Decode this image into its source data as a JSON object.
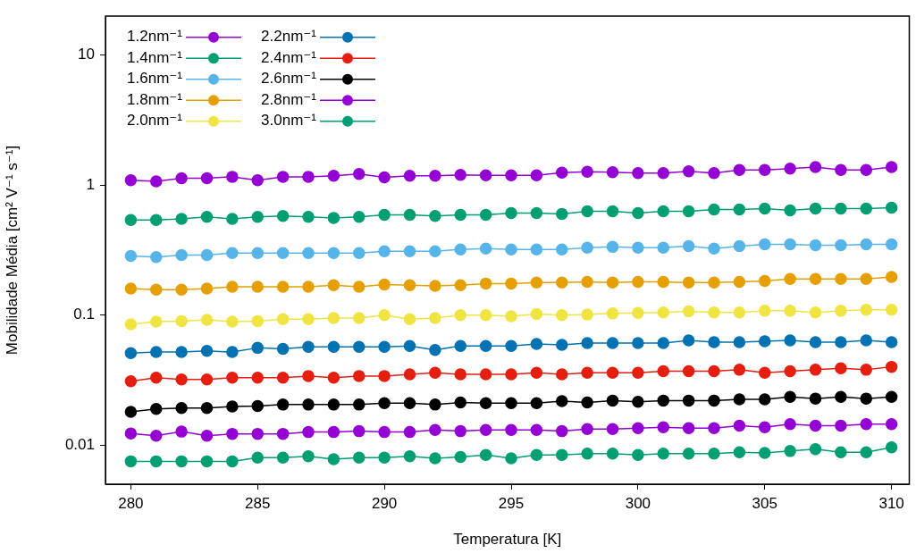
{
  "chart_data": {
    "type": "line",
    "xlabel": "Temperatura [K]",
    "ylabel": "Mobilidade Média [cm² V⁻¹ s⁻¹]",
    "x": [
      280,
      281,
      282,
      283,
      284,
      285,
      286,
      287,
      288,
      289,
      290,
      291,
      292,
      293,
      294,
      295,
      296,
      297,
      298,
      299,
      300,
      301,
      302,
      303,
      304,
      305,
      306,
      307,
      308,
      309,
      310
    ],
    "xlim": [
      279,
      310.7
    ],
    "xticks": [
      280,
      285,
      290,
      295,
      300,
      305,
      310
    ],
    "ylim": [
      0.005,
      20
    ],
    "yticks": [
      0.01,
      0.1,
      1,
      10
    ],
    "log": "y",
    "grid": false,
    "legend": "top left",
    "marker": "circle",
    "line_style": "solid",
    "series": [
      {
        "name": "1.2nm⁻¹",
        "color": "#9400d3",
        "values": [
          1.09,
          1.07,
          1.13,
          1.13,
          1.16,
          1.09,
          1.16,
          1.16,
          1.18,
          1.22,
          1.15,
          1.18,
          1.18,
          1.2,
          1.19,
          1.19,
          1.19,
          1.25,
          1.27,
          1.26,
          1.24,
          1.24,
          1.28,
          1.24,
          1.31,
          1.31,
          1.34,
          1.38,
          1.31,
          1.31,
          1.38
        ]
      },
      {
        "name": "1.4nm⁻¹",
        "color": "#009e73",
        "values": [
          0.54,
          0.54,
          0.55,
          0.57,
          0.55,
          0.57,
          0.58,
          0.57,
          0.56,
          0.57,
          0.59,
          0.59,
          0.58,
          0.59,
          0.59,
          0.61,
          0.61,
          0.6,
          0.63,
          0.63,
          0.61,
          0.63,
          0.63,
          0.65,
          0.65,
          0.66,
          0.64,
          0.66,
          0.66,
          0.66,
          0.67
        ]
      },
      {
        "name": "1.6nm⁻¹",
        "color": "#56b4e9",
        "values": [
          0.285,
          0.28,
          0.29,
          0.29,
          0.3,
          0.3,
          0.3,
          0.3,
          0.3,
          0.3,
          0.31,
          0.31,
          0.31,
          0.32,
          0.325,
          0.32,
          0.32,
          0.32,
          0.33,
          0.335,
          0.33,
          0.33,
          0.34,
          0.325,
          0.34,
          0.35,
          0.35,
          0.345,
          0.345,
          0.35,
          0.35
        ]
      },
      {
        "name": "1.8nm⁻¹",
        "color": "#e69f00",
        "values": [
          0.16,
          0.157,
          0.157,
          0.16,
          0.165,
          0.165,
          0.165,
          0.165,
          0.17,
          0.165,
          0.172,
          0.17,
          0.168,
          0.17,
          0.175,
          0.175,
          0.178,
          0.178,
          0.18,
          0.178,
          0.18,
          0.18,
          0.178,
          0.178,
          0.18,
          0.183,
          0.19,
          0.19,
          0.19,
          0.19,
          0.197
        ]
      },
      {
        "name": "2.0nm⁻¹",
        "color": "#f0e442",
        "values": [
          0.085,
          0.089,
          0.09,
          0.092,
          0.089,
          0.09,
          0.093,
          0.093,
          0.095,
          0.095,
          0.1,
          0.093,
          0.095,
          0.1,
          0.1,
          0.098,
          0.102,
          0.1,
          0.101,
          0.103,
          0.104,
          0.105,
          0.107,
          0.105,
          0.105,
          0.108,
          0.108,
          0.105,
          0.108,
          0.11,
          0.11
        ]
      },
      {
        "name": "2.2nm⁻¹",
        "color": "#0072b2",
        "values": [
          0.051,
          0.052,
          0.052,
          0.053,
          0.052,
          0.056,
          0.055,
          0.057,
          0.057,
          0.057,
          0.057,
          0.058,
          0.054,
          0.058,
          0.058,
          0.058,
          0.06,
          0.059,
          0.061,
          0.061,
          0.061,
          0.061,
          0.064,
          0.062,
          0.062,
          0.063,
          0.064,
          0.062,
          0.062,
          0.064,
          0.062
        ]
      },
      {
        "name": "2.4nm⁻¹",
        "color": "#e51e10",
        "values": [
          0.031,
          0.033,
          0.032,
          0.032,
          0.033,
          0.033,
          0.033,
          0.034,
          0.033,
          0.034,
          0.034,
          0.035,
          0.036,
          0.035,
          0.035,
          0.035,
          0.036,
          0.035,
          0.036,
          0.036,
          0.036,
          0.037,
          0.037,
          0.037,
          0.038,
          0.036,
          0.037,
          0.038,
          0.039,
          0.038,
          0.04
        ]
      },
      {
        "name": "2.6nm⁻¹",
        "color": "#000000",
        "values": [
          0.018,
          0.019,
          0.0193,
          0.0193,
          0.0198,
          0.02,
          0.0205,
          0.0205,
          0.0205,
          0.0205,
          0.021,
          0.021,
          0.0205,
          0.0213,
          0.021,
          0.021,
          0.021,
          0.0218,
          0.0213,
          0.022,
          0.0215,
          0.022,
          0.022,
          0.022,
          0.0225,
          0.0225,
          0.0235,
          0.0228,
          0.0235,
          0.0228,
          0.0235
        ]
      },
      {
        "name": "2.8nm⁻¹",
        "color": "#9400d3",
        "values": [
          0.0123,
          0.0118,
          0.0127,
          0.0118,
          0.0122,
          0.0122,
          0.0122,
          0.0126,
          0.0126,
          0.0128,
          0.0126,
          0.0126,
          0.0131,
          0.0128,
          0.0131,
          0.0131,
          0.0131,
          0.0128,
          0.0133,
          0.0133,
          0.0135,
          0.0137,
          0.0135,
          0.0135,
          0.0141,
          0.0137,
          0.0145,
          0.0141,
          0.0141,
          0.0145,
          0.0145
        ]
      },
      {
        "name": "3.0nm⁻¹",
        "color": "#009e73",
        "values": [
          0.0075,
          0.0075,
          0.0075,
          0.0075,
          0.0075,
          0.008,
          0.008,
          0.0082,
          0.0078,
          0.008,
          0.008,
          0.0082,
          0.0079,
          0.0081,
          0.0084,
          0.0079,
          0.0084,
          0.0084,
          0.0086,
          0.0086,
          0.0084,
          0.0086,
          0.0086,
          0.0086,
          0.0088,
          0.0087,
          0.009,
          0.0093,
          0.0088,
          0.0088,
          0.0096
        ]
      }
    ]
  }
}
